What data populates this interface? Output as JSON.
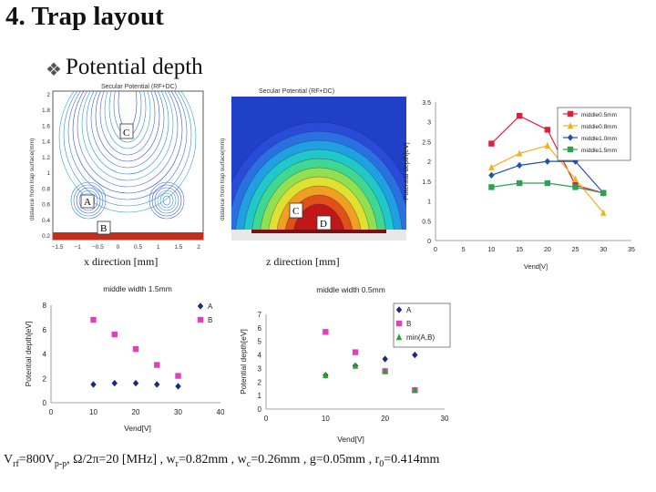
{
  "slide": {
    "title": "4. Trap layout",
    "bullet_icon": "bullet-glyph-icon",
    "subtitle": "Potential depth",
    "footer": {
      "p1": "V",
      "s1": "rf",
      "p2": "=800V",
      "s2": "p-p",
      "p3": ", Ω/2π=20 [MHz] , w",
      "s3": "r",
      "p4": "=0.82mm , w",
      "s4": "c",
      "p5": "=0.26mm , g=0.05mm , r",
      "s5": "0",
      "p6": "=0.414mm"
    }
  },
  "contours": {
    "left": {
      "title": "Secular Potential (RF+DC)",
      "ylabel": "distance from trap surface(mm)",
      "yticks": [
        "2",
        "1.8",
        "1.6",
        "1.4",
        "1.2",
        "1",
        "0.8",
        "0.6",
        "0.4",
        "0.2"
      ],
      "xticks": [
        "−1.5",
        "−1",
        "−0.5",
        "0",
        "0.5",
        "1",
        "1.5",
        "2"
      ],
      "regions": [
        "C",
        "A",
        "B"
      ],
      "caption": "x direction [mm]"
    },
    "right": {
      "title": "Secular Potential (RF+DC)",
      "ylabel": "distance from trap surface(mm)",
      "regions": [
        "C",
        "D"
      ],
      "caption": "z direction [mm]"
    }
  },
  "chart_data": [
    {
      "type": "line",
      "title": "",
      "xlabel": "Vend[V]",
      "ylabel": "Potential depth[eV]",
      "xlim": [
        0,
        35
      ],
      "ylim": [
        0,
        3.5
      ],
      "xticks": [
        0,
        5,
        10,
        15,
        20,
        25,
        30,
        35
      ],
      "yticks": [
        0,
        0.5,
        1,
        1.5,
        2,
        2.5,
        3,
        3.5
      ],
      "x": [
        10,
        15,
        20,
        25,
        30
      ],
      "series": [
        {
          "name": "middle0.5mm",
          "color": "#e0203a",
          "marker": "square",
          "values": [
            2.45,
            3.15,
            2.8,
            1.4,
            1.2
          ]
        },
        {
          "name": "middle0.8mm",
          "color": "#f0b020",
          "marker": "triangle",
          "values": [
            1.85,
            2.2,
            2.4,
            1.55,
            0.7
          ]
        },
        {
          "name": "middle1.0mm",
          "color": "#2050b0",
          "marker": "diamond",
          "values": [
            1.65,
            1.9,
            2.0,
            2.0,
            1.2
          ]
        },
        {
          "name": "middle1.5mm",
          "color": "#30a050",
          "marker": "square",
          "values": [
            1.35,
            1.45,
            1.45,
            1.35,
            1.2
          ]
        }
      ]
    },
    {
      "type": "scatter",
      "title": "middle width 1.5mm",
      "xlabel": "Vend[V]",
      "ylabel": "Potential depth[eV]",
      "xlim": [
        0,
        40
      ],
      "ylim": [
        0,
        8
      ],
      "xticks": [
        0,
        10,
        20,
        30,
        40
      ],
      "yticks": [
        0,
        2,
        4,
        6,
        8
      ],
      "series": [
        {
          "name": "A",
          "color": "#1a2a80",
          "marker": "diamond",
          "x": [
            10,
            15,
            20,
            25,
            30
          ],
          "values": [
            1.5,
            1.6,
            1.6,
            1.5,
            1.35
          ]
        },
        {
          "name": "B",
          "color": "#e040c0",
          "marker": "square",
          "x": [
            10,
            15,
            20,
            25,
            30
          ],
          "values": [
            6.8,
            5.6,
            4.4,
            3.1,
            2.2
          ]
        }
      ]
    },
    {
      "type": "scatter",
      "title": "middle width 0.5mm",
      "xlabel": "Vend[V]",
      "ylabel": "Potential depth[eV]",
      "xlim": [
        0,
        30
      ],
      "ylim": [
        0,
        7
      ],
      "xticks": [
        0,
        10,
        20,
        30
      ],
      "yticks": [
        0,
        1,
        2,
        3,
        4,
        5,
        6,
        7
      ],
      "series": [
        {
          "name": "A",
          "color": "#1a2a80",
          "marker": "diamond",
          "x": [
            10,
            15,
            20,
            25
          ],
          "values": [
            2.5,
            3.2,
            3.7,
            4.0
          ]
        },
        {
          "name": "B",
          "color": "#e040c0",
          "marker": "square",
          "x": [
            10,
            15,
            20,
            25
          ],
          "values": [
            5.7,
            4.2,
            2.8,
            1.4
          ]
        },
        {
          "name": "min(A,B)",
          "color": "#30a030",
          "marker": "triangle",
          "x": [
            10,
            15,
            20,
            25
          ],
          "values": [
            2.5,
            3.2,
            2.8,
            1.4
          ]
        }
      ]
    }
  ]
}
